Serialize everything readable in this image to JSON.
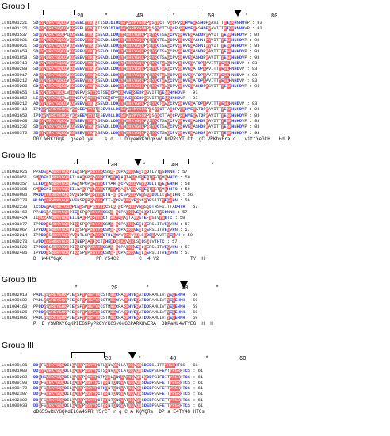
{
  "groups": [
    {
      "title": "Group I",
      "ticks": [
        "20",
        "*",
        "40",
        "*",
        "60",
        "*",
        "80"
      ],
      "ids": [
        "Lus1001221",
        "Lus1001126",
        "Lus1001537",
        "Lus1000021",
        "Lus1000021",
        "Lus1001659",
        "Lus1001858",
        "Lus1000713",
        "Lus1000288",
        "Lus1000017",
        "Lus1000212",
        "Lus1000288",
        "Lus1000656",
        "Lus1001859",
        "Lus1000212",
        "Lus1000418",
        "Lus1001650",
        "Lus1000068",
        "Lus1001232",
        "Lus1000376"
      ],
      "seqs": [
        "SDGYNWRKYGQKQVKGSEELYYKTQTISDIDIDDGYNWRKYGQKPRSYKCTTVGCPVRKHVERASHDPRAVITTYEGKHNHDVP",
        "SDGYNWRKYGQKQVKGSEELYYKTQTISDIDIDDGYNWRKYGQKPRSYKCTTVGCPVRKHVERASHDPRAVITTYEGKHNHDVP",
        "SDGYNWRKYGQKPIKGSEELYYKTRSEVDLLDDGYNWRKYGQKPRSYRCTSAGCPVRKHVERAADDPKAVITTYEGKHNHDVP",
        "SDGYNWRKYGQKQVKGSEEVYYKTQSEVDLLDDGYNWRKYGQKPRSYRCTSAGCPVRKHVERASHNLKYVITTYEGKHNHDVP",
        "SDGYNWRKYGQKQVKGSEEVYYKTQSEVDLLDDGYNWRKYGQKPRSYRCTSAGCPVRKHVERASHNLKYVITTYEGKHNHDVP",
        "SDGYNWRKYGQKQVKGSEEVYYKTQSEVDLLDDGYNWRKYGQKPRSYRCTSAGCPVRKHVERASHDPKAVITTYEGKHNHDVP",
        "SDGYNWRKYGQKQVKGSEEVYYKTQSEVDLLDDGYNWRKYGQKPRSYRCTSAGCPVRKHVERASHDPKAVITTYEGKHNHDVP",
        "ADGYNWRKYGQKQVKGSEEVYYKTQSEVDLLDDGYNWRKYGQKPRSYKCTWAGCPVRKHVERATDPKAVITTYEGKHNHDVP",
        "SDGYNWRKYGQKQVKGSEEVYYKTQSEVDLLDDGYNWRKYGQKPRSYKCTWAGCPVRKHVERATDPKAVITTYEGKHNHDVP",
        "ADGYNWRKYGQKQVKGSEEVYYKTQSEVDLLDDGYNWRKYGQKPRSYKCTWAGCPVRKHVERATDPKAVITTYEGKHNHDVP",
        "ADGYNWRKYGQKQVKGSEEVYYKTQSEVDLLDDGYNWRKYGQKPRSYKCTWAGCPVRKHVERATDPKAVITTYEGKHNHDVP",
        "SDGYNWRKYGQKQVKGSEEVYYKTQSEVDLLDDGYNWRKYGQKPRSYKCTWAGCPVRKHVERASHDPKSVITTYEGKHNHDVP",
        "LEGYNWRKYGQKLVKGNEFVRSYYRCTSEGCPVKKHVERSEDPKSVITTYEGKHNHDVP",
        "LEGYNWRKYGQKLVKGNEFVRSYYRCTSEGCPVKKHVERSEDPKSVITTYEGKHNHDVP",
        "ADGYNWRKYGQKQVKGSEEVYYKTQSEVDLLDDGYNWRKYGQKPRSYKCTWAGCPVRKHVERATDPKAVITTYEGKHNHDVP",
        "IPDGYNWRKYGQKQVKGSEEVYYKTQSEVDLLDDGYNWRKYGQKPRSYKCTTAGCPVRKHVERATDPKAVITTYEGKHNHDVP",
        "IPDGYNWRKYGQKQVKGSEEVYYKTQSEVDLLDDGYNWRKYGQKPRSYKCTTAGCPVRKHVERATDPKAVITTYEGKHNHDVP",
        "SDGYNWRKYGQKQVKGSEEVYYKTQSEVDLLDDGYNWRKYGQKPRSYKCTSAGCPVRKHVERASHDPKAVITTYEGKHNHDVP",
        "SDGYNWRKYGQKQVKGSEEVYYKTQSEVDLLDDGYNWRKYGQKPRSYKCTSAGCPVRKHVERASHDPKAVITTYEGKHNHDVP",
        "SDGYNWRKYGQKQVKGSEEVYYKTQSEVDLLDDGYNWRKYGQKPRSYKCTSAGCPVRKHVERASHDPKAVITTYEGKHNHDVP"
      ],
      "end_number": "93",
      "consensus": "DGY WRKYGqK  gseel yk    s d  l DGyeWRKYGqKvV GnPRsYT Ct  gC VRKhvEra d   vittYeGkH   Hd P"
    },
    {
      "title": "Group IIc",
      "ticks": [
        "*",
        "20",
        "*",
        "40",
        "*"
      ],
      "ids": [
        "Lus1002925",
        "Lus1000051",
        "Lus1000357",
        "Lus1000385",
        "Lus1000086",
        "Lus1002778",
        "Lus1002230",
        "Lus1001460",
        "Lus1000424",
        "Lus1001877",
        "Lus1002067",
        "Lus1002214",
        "Lus1000273",
        "Lus1001522",
        "Lus1002486"
      ],
      "seqs": [
        "PPADSWAWRKYGQKPIEGSPYPRGYYRCSSK-GCPARKQVERSRDTLVTYSDNNH",
        "SMQDENIWRKYGQKEILNAKFPRSYYRCTMKYDQAKTAKQVEREKTYSTYMGHHTC",
        "LLEDGYNWRKYGQKIAEGNPCPRAYYRCTVAH-GCPVRKQVERKDDLITYEGEHNH",
        "SMQDENIWRKYGQKEILNAKFPRSYYRCTMKYDQAKTAKQVEREKTYSTYMGHHTC",
        "MADDGYKWRKYGQKSVKNSPNPRSYYRCTN-R-RCSAKKQVERSKKDDLITYEGLHN",
        "HLDDGYRWRKYGQKAVENSPYPRSYYKCTT-GCPVKKRVERSNRDPSIITYEGYHN",
        "ICSDEWANWRKYGQKPIEGSPYPRGYYRCSLK-GCPARKQVERSRDTHSFIITTADHTH",
        "PPADSWAWRKYGQKPIEGSPYPRGYYRCSSK-GCPARKQVERSRDTLVTYSDNNH",
        "IIQGGANWRKYGQKEILNAKFPRSYYRCTTRKYDQAKTAKKETE-YSIVYGHTC",
        "IPPDDYSWRKYGQKPIKGSPYPRGYYRCSMR-GCPARKQVERLREPSLITVEGVHN",
        "IPPDDYSWRKYGQKPIKGSPYPRGYYRCSMR-GCPARKQVERLREPSLITVEGVHN",
        "IPPDDYSWRKYGQKVVKNTLSPRSYYRCTHLGCNVKKQVQRLSRDEGVVVTTYEGVH",
        "LVDDGYGWRKYGQKIIKNEPRAYFRCTYHEKDQSKQVQRLSRDSGLVTHTC",
        "IPPDDYSWRKYGQKPIKGSPYPRGYYRCSMR-GCPARKQVERLREPSLITVEGVHN",
        "IPPDDYSWRKYGQKPIKGSPYPRGYYRCSMR-GCPARKQVERLREPSLITVEGVHN"
      ],
      "end_numbers": [
        "57",
        "59",
        "58",
        "59",
        "56",
        "56",
        "57",
        "57",
        "58",
        "57",
        "57",
        "59",
        "57",
        "57",
        "57"
      ],
      "consensus": "D  W4KYGqK            PR Y54C2       C  4 V2           TY  H"
    },
    {
      "title": "Group IIb",
      "ticks": [
        "*",
        "20",
        "*",
        "40",
        "*"
      ],
      "ids": [
        "Lus1002013",
        "Lus1000689",
        "Lus1004160",
        "Lus1000626",
        "Lus1001005"
      ],
      "seqs": [
        "PADLYSWRKYGQKPIEGSPYPRGYYKCSTMRGCPARKHVERATDDPAMLIVTYEGEHNH",
        "PADLYSWRKYGQKPIEGSPYPRGYYKCSTMRGCPARKHVERATDDPAMLIVTYEGEHNH",
        "PPDDYSWRKYGQKPIEGSPYPRGYYKCSTMRGCPARKHVERATDDPAMLIVTYEGEHNH",
        "PPDDYSWRKYGQKPIEGSPYPRGYYKCSTMRGCPARKHVERATDDPAMLIVTYEGEHNH",
        "PADLYSWRKYGQKPIEGSPYPRGYYKCSTMRGCPARKHVERATDDPAMLIVTYEGEHNH"
      ],
      "end_number": "59",
      "consensus": "P  D YSWRKYGqKPIEGSPyPRGYYKCS#G#GCPARKHVERA  DDPaML4VTYEG  H  H"
    },
    {
      "title": "Group III",
      "ticks": [
        "20",
        "*",
        "40",
        "*",
        "60"
      ],
      "ids": [
        "Lus1000106",
        "Lus1001080",
        "Lus1000283",
        "Lus1000190",
        "Lus1000470",
        "Lus1002307",
        "Lus1002309",
        "Lus1000933"
      ],
      "seqs": [
        "DDGFSWRKYGQKDILGAKYPRGYYRCTLRNVQGCLATKQVQRSDEDSLITTYRGRHTCS",
        "DDGYSWRKYGQKDILGAKYPRGYYRCTSRNVQGCLATKQVQRSDEDPSLFEVTYRGRHTCS",
        "DDGHSWRKYGQKDILGAKYPRSYYRCTMQKLYNCRAKKQVQRLQDDPSIFDITYRGRHTCS",
        "DDGFSWRKYGQKDILGAKYPRGYYRCTYRNTQNCWATKQVQRSDEDPSVFETTYRGRHTCS",
        "DDGFSWRKYGQKDILGAKYPRGYYRCTHRNTQNCWATKQVQRSDEDPSVFETTYRGRHTCS",
        "DDGFSWRKYGQKDILGAKYPRGYYRCTYRNTQNCWATKQVQRSDEDPSVFETTYRGRHTCS",
        "DDGFSWRKYGQKDILGAKYPRGYYRCTYRNTQNCWATKQVQRSDEDPSVFETTYRGRHTCS",
        "DDGFSWRKYGQKDILGAKYPRGYYRCTYRNTQNCWATKQVQRSDEDPSVFETTYRGRHTCS"
      ],
      "end_number": "61",
      "consensus": "dDG5SwRKYGQKdILGa45PR Y5rCT r q C A KQVQRs  DP a E4TY4G HTCs"
    }
  ]
}
